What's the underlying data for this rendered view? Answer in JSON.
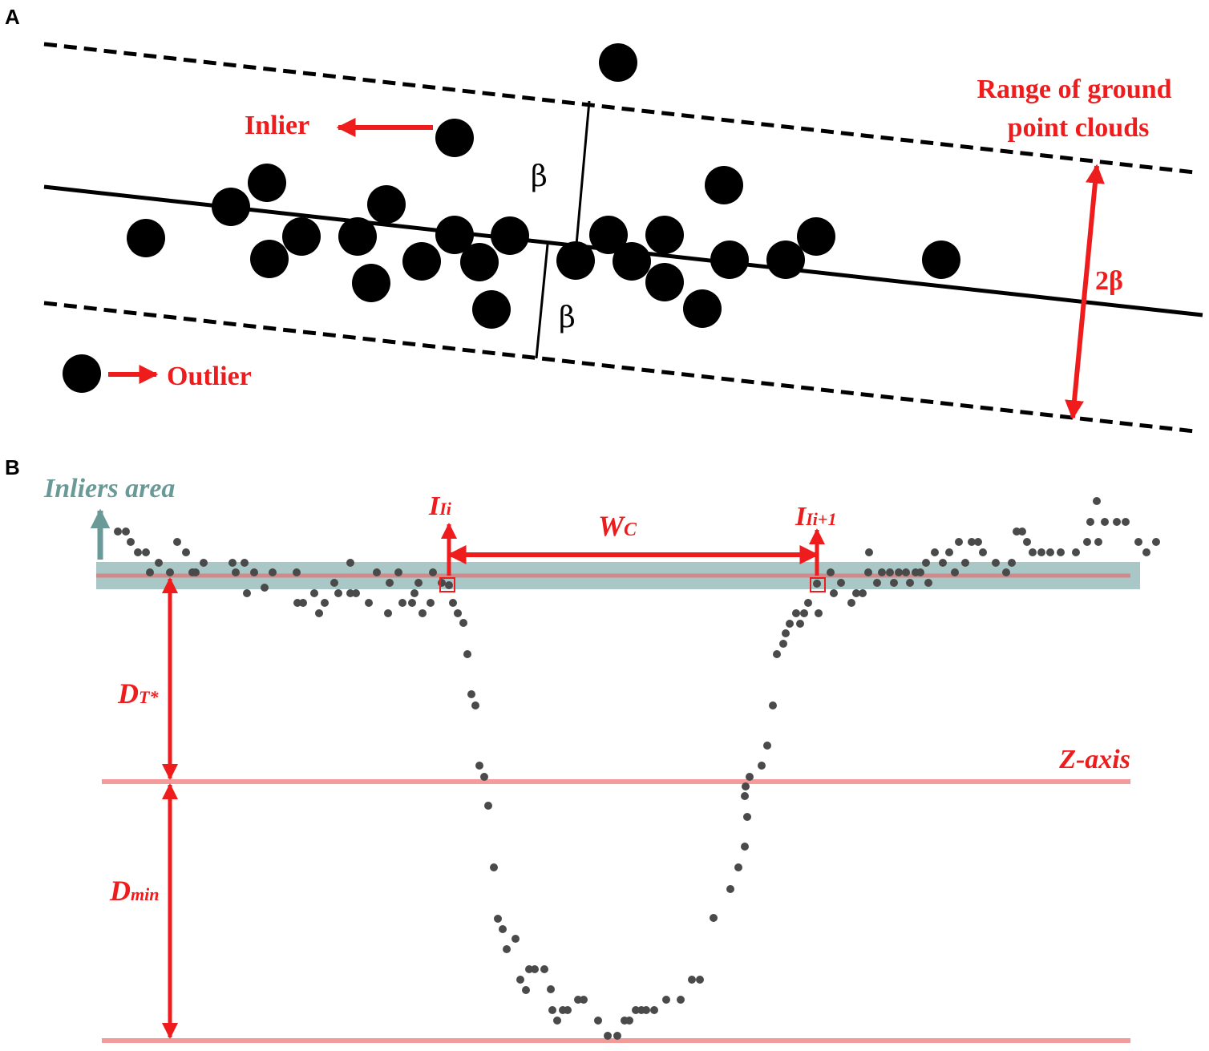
{
  "panel_a": {
    "letter": "A",
    "inlier_label": "Inlier",
    "outlier_label": "Outlier",
    "range_label_line1": "Range of ground",
    "range_label_line2": "point clouds",
    "beta_upper": "β",
    "beta_lower": "β",
    "width_label": "2β"
  },
  "panel_b": {
    "letter": "B",
    "inliers_area_label": "Inliers area",
    "left_inlier_label": "I",
    "left_inlier_sub": "Ii",
    "right_inlier_label": "I",
    "right_inlier_sub": "Ii+1",
    "width_label": "W",
    "width_sub": "C",
    "depth_threshold_label": "D",
    "depth_threshold_sub": "T*",
    "zaxis_label": "Z-axis",
    "depth_min_label": "D",
    "depth_min_sub": "min"
  },
  "colors": {
    "red": "#ee1c1c",
    "teal": "#6a9a97",
    "band": "#a9c7c6",
    "pink_line": "#f39a9a",
    "point_gray": "#4a4a4a"
  }
}
